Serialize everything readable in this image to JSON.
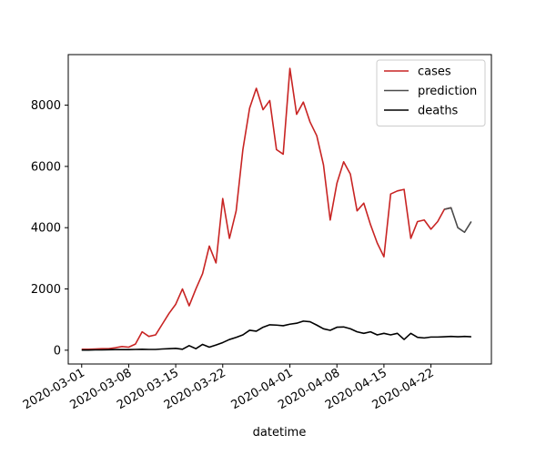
{
  "chart_data": {
    "type": "line",
    "title": "",
    "xlabel": "datetime",
    "ylabel": "",
    "x_tick_labels": [
      "2020-03-01",
      "2020-03-08",
      "2020-03-15",
      "2020-03-22",
      "2020-04-01",
      "2020-04-08",
      "2020-04-15",
      "2020-04-22"
    ],
    "y_tick_labels": [
      "0",
      "2000",
      "4000",
      "6000",
      "8000"
    ],
    "y_ticks": [
      0,
      2000,
      4000,
      6000,
      8000
    ],
    "xlim": [
      "2020-02-28",
      "2020-05-01"
    ],
    "ylim": [
      -450,
      9650
    ],
    "grid": false,
    "legend": "top-right",
    "series": [
      {
        "name": "cases",
        "color": "#c82423",
        "points": [
          [
            "2020-03-01",
            30
          ],
          [
            "2020-03-02",
            30
          ],
          [
            "2020-03-03",
            40
          ],
          [
            "2020-03-04",
            50
          ],
          [
            "2020-03-05",
            50
          ],
          [
            "2020-03-06",
            80
          ],
          [
            "2020-03-07",
            120
          ],
          [
            "2020-03-08",
            100
          ],
          [
            "2020-03-09",
            200
          ],
          [
            "2020-03-10",
            600
          ],
          [
            "2020-03-11",
            450
          ],
          [
            "2020-03-12",
            500
          ],
          [
            "2020-03-13",
            850
          ],
          [
            "2020-03-14",
            1200
          ],
          [
            "2020-03-15",
            1500
          ],
          [
            "2020-03-16",
            2000
          ],
          [
            "2020-03-17",
            1450
          ],
          [
            "2020-03-18",
            2000
          ],
          [
            "2020-03-19",
            2500
          ],
          [
            "2020-03-20",
            3400
          ],
          [
            "2020-03-21",
            2850
          ],
          [
            "2020-03-22",
            4950
          ],
          [
            "2020-03-23",
            3650
          ],
          [
            "2020-03-24",
            4550
          ],
          [
            "2020-03-25",
            6550
          ],
          [
            "2020-03-26",
            7900
          ],
          [
            "2020-03-27",
            8550
          ],
          [
            "2020-03-28",
            7850
          ],
          [
            "2020-03-29",
            8150
          ],
          [
            "2020-03-30",
            6550
          ],
          [
            "2020-03-31",
            6400
          ],
          [
            "2020-04-01",
            9200
          ],
          [
            "2020-04-02",
            7700
          ],
          [
            "2020-04-03",
            8100
          ],
          [
            "2020-04-04",
            7450
          ],
          [
            "2020-04-05",
            7000
          ],
          [
            "2020-04-06",
            6050
          ],
          [
            "2020-04-07",
            4250
          ],
          [
            "2020-04-08",
            5450
          ],
          [
            "2020-04-09",
            6150
          ],
          [
            "2020-04-10",
            5750
          ],
          [
            "2020-04-11",
            4550
          ],
          [
            "2020-04-12",
            4800
          ],
          [
            "2020-04-13",
            4100
          ],
          [
            "2020-04-14",
            3500
          ],
          [
            "2020-04-15",
            3050
          ],
          [
            "2020-04-16",
            5100
          ],
          [
            "2020-04-17",
            5200
          ],
          [
            "2020-04-18",
            5250
          ],
          [
            "2020-04-19",
            3650
          ],
          [
            "2020-04-20",
            4200
          ],
          [
            "2020-04-21",
            4250
          ],
          [
            "2020-04-22",
            3950
          ],
          [
            "2020-04-23",
            4200
          ],
          [
            "2020-04-24",
            4600
          ],
          [
            "2020-04-25",
            4650
          ]
        ]
      },
      {
        "name": "prediction",
        "color": "#4b4b4b",
        "points": [
          [
            "2020-04-24",
            4600
          ],
          [
            "2020-04-25",
            4650
          ],
          [
            "2020-04-26",
            4000
          ],
          [
            "2020-04-27",
            3850
          ],
          [
            "2020-04-28",
            4200
          ]
        ]
      },
      {
        "name": "deaths",
        "color": "#000000",
        "points": [
          [
            "2020-03-01",
            5
          ],
          [
            "2020-03-02",
            5
          ],
          [
            "2020-03-03",
            10
          ],
          [
            "2020-03-04",
            10
          ],
          [
            "2020-03-05",
            15
          ],
          [
            "2020-03-06",
            20
          ],
          [
            "2020-03-07",
            20
          ],
          [
            "2020-03-08",
            20
          ],
          [
            "2020-03-09",
            25
          ],
          [
            "2020-03-10",
            30
          ],
          [
            "2020-03-11",
            25
          ],
          [
            "2020-03-12",
            25
          ],
          [
            "2020-03-13",
            40
          ],
          [
            "2020-03-14",
            50
          ],
          [
            "2020-03-15",
            60
          ],
          [
            "2020-03-16",
            30
          ],
          [
            "2020-03-17",
            150
          ],
          [
            "2020-03-18",
            50
          ],
          [
            "2020-03-19",
            190
          ],
          [
            "2020-03-20",
            100
          ],
          [
            "2020-03-21",
            170
          ],
          [
            "2020-03-22",
            250
          ],
          [
            "2020-03-23",
            350
          ],
          [
            "2020-03-24",
            420
          ],
          [
            "2020-03-25",
            500
          ],
          [
            "2020-03-26",
            650
          ],
          [
            "2020-03-27",
            620
          ],
          [
            "2020-03-28",
            750
          ],
          [
            "2020-03-29",
            830
          ],
          [
            "2020-03-30",
            820
          ],
          [
            "2020-03-31",
            800
          ],
          [
            "2020-04-01",
            850
          ],
          [
            "2020-04-02",
            880
          ],
          [
            "2020-04-03",
            950
          ],
          [
            "2020-04-04",
            930
          ],
          [
            "2020-04-05",
            820
          ],
          [
            "2020-04-06",
            700
          ],
          [
            "2020-04-07",
            650
          ],
          [
            "2020-04-08",
            750
          ],
          [
            "2020-04-09",
            760
          ],
          [
            "2020-04-10",
            700
          ],
          [
            "2020-04-11",
            600
          ],
          [
            "2020-04-12",
            550
          ],
          [
            "2020-04-13",
            600
          ],
          [
            "2020-04-14",
            500
          ],
          [
            "2020-04-15",
            550
          ],
          [
            "2020-04-16",
            500
          ],
          [
            "2020-04-17",
            550
          ],
          [
            "2020-04-18",
            350
          ],
          [
            "2020-04-19",
            550
          ],
          [
            "2020-04-20",
            420
          ],
          [
            "2020-04-21",
            400
          ],
          [
            "2020-04-22",
            430
          ],
          [
            "2020-04-23",
            430
          ],
          [
            "2020-04-24",
            440
          ],
          [
            "2020-04-25",
            450
          ],
          [
            "2020-04-26",
            440
          ],
          [
            "2020-04-27",
            450
          ],
          [
            "2020-04-28",
            440
          ]
        ]
      }
    ]
  }
}
